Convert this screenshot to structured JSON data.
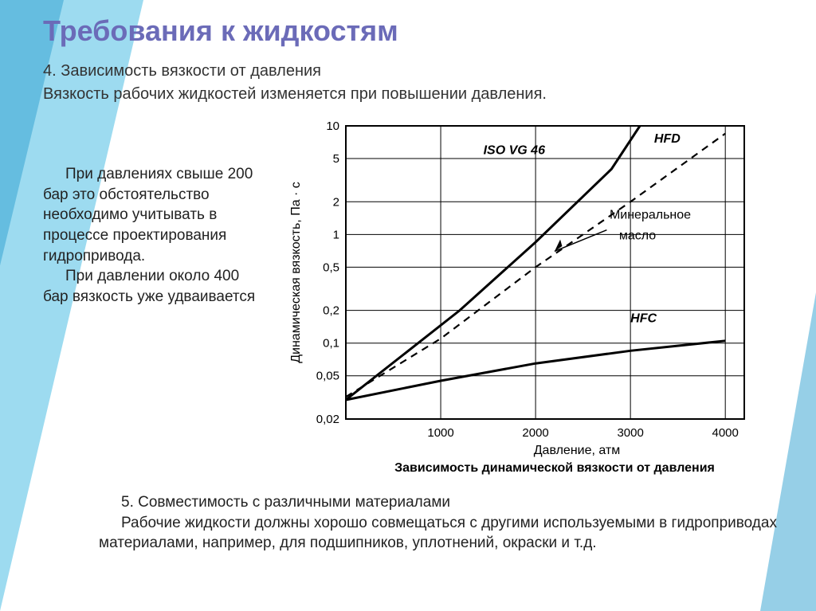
{
  "title": "Требования к жидкостям",
  "heading4": "4. Зависимость вязкости от давления",
  "intro": "Вязкость рабочих жидкостей изменяется при повышении давления.",
  "left_para1": "При давлениях свыше 200 бар это обстоятельство необходимо учитывать в процессе проектирования гидропривода.",
  "left_para2": "При давлении около 400 бар вязкость уже удваивается",
  "heading5": "5. Совместимость с различными материалами",
  "bottom_para": "Рабочие жидкости должны хорошо совмещаться с другими используемыми в гидроприводах материалами, например, для подшипников, уплотнений, окраски и т.д.",
  "chart": {
    "type": "line",
    "ylabel": "Динамическая вязкость, Па · с",
    "xlabel": "Давление, атм",
    "caption": "Зависимость динамической вязкости от давления",
    "x_ticks": [
      1000,
      2000,
      3000,
      4000
    ],
    "y_ticks": [
      0.02,
      0.05,
      0.1,
      0.2,
      0.5,
      1,
      2,
      5,
      10
    ],
    "y_tick_labels": [
      "0,02",
      "0,05",
      "0,1",
      "0,2",
      "0,5",
      "1",
      "2",
      "5",
      "10"
    ],
    "xlim": [
      0,
      4200
    ],
    "ylim_log": [
      0.02,
      10
    ],
    "background_color": "#ffffff",
    "grid_color": "#000000",
    "axis_color": "#000000",
    "line_color": "#000000",
    "line_width_main": 3,
    "line_width_dash": 2.2,
    "series": {
      "HFD": {
        "label": "HFD",
        "style": "solid",
        "points": [
          [
            0,
            0.03
          ],
          [
            1200,
            0.2
          ],
          [
            2000,
            0.85
          ],
          [
            2800,
            4.0
          ],
          [
            3100,
            10
          ]
        ]
      },
      "Mineral": {
        "label": "Минеральное масло",
        "style": "dashed",
        "points": [
          [
            0,
            0.032
          ],
          [
            1000,
            0.11
          ],
          [
            2000,
            0.5
          ],
          [
            3000,
            2.0
          ],
          [
            4000,
            8.5
          ]
        ]
      },
      "HFC": {
        "label": "HFC",
        "style": "solid",
        "points": [
          [
            0,
            0.03
          ],
          [
            1000,
            0.045
          ],
          [
            2000,
            0.065
          ],
          [
            3000,
            0.085
          ],
          [
            4000,
            0.105
          ]
        ]
      }
    },
    "annotations": {
      "iso": "ISO VG 46",
      "hfd": "HFD",
      "mineral": "Минеральное\nмасло",
      "hfc": "HFC"
    },
    "label_fontsize": 16,
    "tick_fontsize": 15,
    "caption_fontsize": 16
  }
}
